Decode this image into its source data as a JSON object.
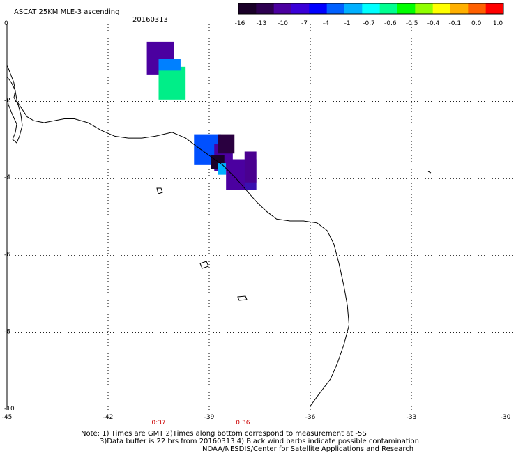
{
  "header": {
    "title": "ASCAT 25KM MLE-3 ascending",
    "date": "20160313"
  },
  "colorbar": {
    "labels": [
      "-16",
      "-13",
      "-10",
      "-7",
      "-4",
      "-1",
      "-0.7",
      "-0.6",
      "-0.5",
      "-0.4",
      "-0.1",
      "0.0",
      "1.0"
    ],
    "colors": [
      "#1a0028",
      "#2d0050",
      "#4b00a0",
      "#3a00d8",
      "#0000ff",
      "#0060ff",
      "#00b0ff",
      "#00ffff",
      "#00ff90",
      "#00ff00",
      "#90ff00",
      "#ffff00",
      "#ffb000",
      "#ff6000",
      "#ff0000"
    ]
  },
  "axes": {
    "x_ticks": [
      "-45",
      "-42",
      "-39",
      "-36",
      "-33",
      "-30"
    ],
    "y_ticks": [
      "0",
      "-2",
      "-4",
      "-6",
      "-8",
      "-10"
    ],
    "lon_range": [
      -45,
      -30
    ],
    "lat_range": [
      -10,
      0
    ]
  },
  "times": [
    {
      "label": "0:37",
      "lon": -40.5
    },
    {
      "label": "0:36",
      "lon": -38.0
    }
  ],
  "notes": {
    "line1": "Note: 1) Times are GMT 2)Times along bottom correspond to measurement at -5S",
    "line2": "3)Data buffer is 22 hrs from 20160313 4) Black wind barbs indicate possible contamination",
    "line3": "NOAA/NESDIS/Center for Satellite Applications and Research"
  },
  "cells": [
    {
      "lon": -40.85,
      "lat": -0.45,
      "w": 0.8,
      "h": 0.85,
      "color": "#4b00a0"
    },
    {
      "lon": -40.5,
      "lat": -1.1,
      "w": 0.8,
      "h": 0.85,
      "color": "#00ee88"
    },
    {
      "lon": -40.5,
      "lat": -0.9,
      "w": 0.65,
      "h": 0.3,
      "color": "#0080ff"
    },
    {
      "lon": -39.45,
      "lat": -2.85,
      "w": 0.8,
      "h": 0.8,
      "color": "#0050ff"
    },
    {
      "lon": -38.85,
      "lat": -3.1,
      "w": 0.55,
      "h": 0.7,
      "color": "#4b00a0"
    },
    {
      "lon": -38.75,
      "lat": -2.85,
      "w": 0.5,
      "h": 0.5,
      "color": "#2a0040"
    },
    {
      "lon": -38.95,
      "lat": -3.4,
      "w": 0.4,
      "h": 0.35,
      "color": "#1a0028"
    },
    {
      "lon": -38.75,
      "lat": -3.6,
      "w": 0.25,
      "h": 0.3,
      "color": "#00b0ff"
    },
    {
      "lon": -38.3,
      "lat": -3.5,
      "w": 0.7,
      "h": 0.8,
      "color": "#3a10b0"
    },
    {
      "lon": -38.5,
      "lat": -3.5,
      "w": 0.55,
      "h": 0.8,
      "color": "#4b00a0"
    },
    {
      "lon": -37.95,
      "lat": -3.3,
      "w": 0.35,
      "h": 0.8,
      "color": "#4a0090"
    }
  ],
  "coastline": [
    [
      -45.0,
      -1.05
    ],
    [
      -44.8,
      -1.5
    ],
    [
      -44.7,
      -2.0
    ],
    [
      -44.4,
      -2.4
    ],
    [
      -44.2,
      -2.5
    ],
    [
      -43.9,
      -2.55
    ],
    [
      -43.6,
      -2.5
    ],
    [
      -43.3,
      -2.45
    ],
    [
      -43.0,
      -2.45
    ],
    [
      -42.6,
      -2.55
    ],
    [
      -42.2,
      -2.75
    ],
    [
      -41.8,
      -2.9
    ],
    [
      -41.4,
      -2.95
    ],
    [
      -41.0,
      -2.95
    ],
    [
      -40.6,
      -2.9
    ],
    [
      -40.1,
      -2.8
    ],
    [
      -39.7,
      -2.95
    ],
    [
      -39.4,
      -3.15
    ],
    [
      -39.0,
      -3.4
    ],
    [
      -38.6,
      -3.65
    ],
    [
      -38.2,
      -4.0
    ],
    [
      -37.9,
      -4.3
    ],
    [
      -37.6,
      -4.6
    ],
    [
      -37.3,
      -4.85
    ],
    [
      -37.0,
      -5.05
    ],
    [
      -36.6,
      -5.1
    ],
    [
      -36.2,
      -5.1
    ],
    [
      -35.8,
      -5.15
    ],
    [
      -35.5,
      -5.35
    ],
    [
      -35.3,
      -5.7
    ],
    [
      -35.15,
      -6.2
    ],
    [
      -35.0,
      -6.8
    ],
    [
      -34.9,
      -7.3
    ],
    [
      -34.85,
      -7.8
    ],
    [
      -35.0,
      -8.3
    ],
    [
      -35.2,
      -8.8
    ],
    [
      -35.4,
      -9.2
    ],
    [
      -35.75,
      -9.6
    ],
    [
      -36.0,
      -9.9
    ]
  ]
}
